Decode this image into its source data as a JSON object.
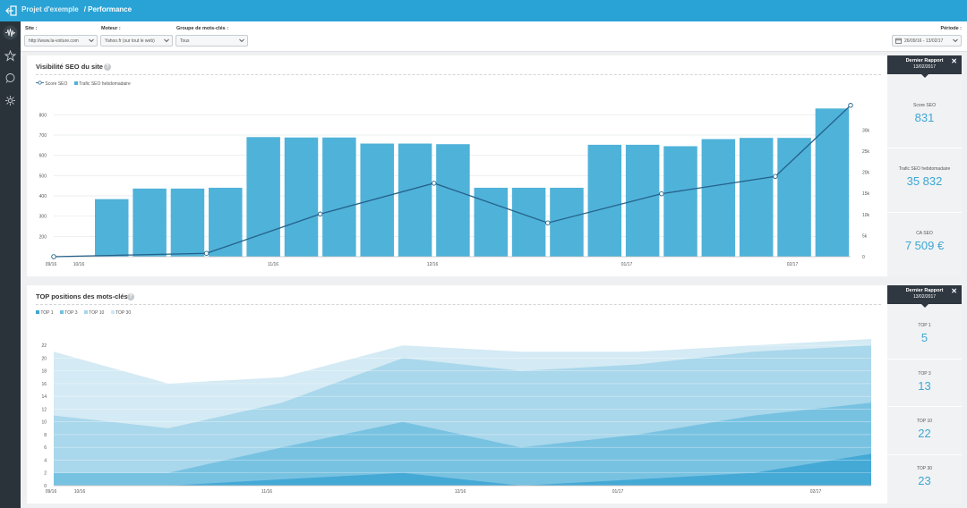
{
  "topbar": {
    "project": "Projet d'exemple",
    "page": "/ Performance"
  },
  "filters": {
    "site_label": "Site :",
    "site_value": "http://www.la-voiture.com",
    "engine_label": "Moteur :",
    "engine_value": "Yahoo.fr (sur tout le web)",
    "group_label": "Groupe de mots-clés :",
    "group_value": "Tous",
    "period_label": "Période :",
    "period_value": "26/09/16 - 13/02/17"
  },
  "seo_panel": {
    "title": "Visibilité SEO du site",
    "title_arrow": "›",
    "legend": [
      "Score SEO",
      "Trafic SEO hebdomadaire"
    ],
    "report_title": "Dernier Rapport",
    "report_date": "13/02/2017",
    "kpis": [
      {
        "label": "Score SEO",
        "value": "831"
      },
      {
        "label": "Trafic SEO hebdomadaire",
        "value": "35 832"
      },
      {
        "label": "CA SEO",
        "value": "7 509 €"
      }
    ]
  },
  "top_panel": {
    "title": "TOP positions des mots-clés",
    "title_arrow": "›",
    "legend": [
      "TOP 1",
      "TOP 3",
      "TOP 10",
      "TOP 30"
    ],
    "report_title": "Dernier Rapport",
    "report_date": "13/02/2017",
    "kpis": [
      {
        "label": "TOP 1",
        "value": "5"
      },
      {
        "label": "TOP 3",
        "value": "13"
      },
      {
        "label": "TOP 10",
        "value": "22"
      },
      {
        "label": "TOP 30",
        "value": "23"
      }
    ]
  },
  "colors": {
    "accent": "#29a3d6",
    "bar": "#4fb2d9",
    "line": "#24618a",
    "sidebar": "#2b333a",
    "kpi": "#3fa6d2"
  },
  "chart_data": [
    {
      "type": "bar",
      "title": "Visibilité SEO du site",
      "x_tick_labels": [
        "09/16",
        "10/16",
        "11/16",
        "12/16",
        "01/17",
        "02/17"
      ],
      "ylim_left": [
        100,
        850
      ],
      "yticks_left": [
        200,
        300,
        400,
        500,
        600,
        700,
        800
      ],
      "ylim_right": [
        0,
        36000
      ],
      "yticks_right": [
        "0",
        "5k",
        "10k",
        "15k",
        "20k",
        "25k",
        "30k"
      ],
      "yticks_right_values": [
        0,
        5000,
        10000,
        15000,
        20000,
        25000,
        30000
      ],
      "bar_axis": "left",
      "bars_name": "Trafic SEO hebdomadaire",
      "bar_values": [
        384,
        436,
        436,
        440,
        690,
        688,
        688,
        658,
        658,
        655,
        440,
        440,
        440,
        652,
        652,
        645,
        680,
        686,
        686,
        831
      ],
      "line_name": "Score SEO",
      "line_axis": "right",
      "line_points": [
        {
          "x": 0,
          "y": 0
        },
        {
          "x": 3,
          "y": 800
        },
        {
          "x": 6,
          "y": 10100
        },
        {
          "x": 9,
          "y": 17400
        },
        {
          "x": 12,
          "y": 8000
        },
        {
          "x": 15,
          "y": 14900
        },
        {
          "x": 18,
          "y": 19000
        },
        {
          "x": 21.5,
          "y": 35832
        }
      ],
      "grid": true,
      "legend_position": "top-left"
    },
    {
      "type": "area",
      "title": "TOP positions des mots-clés",
      "x_tick_labels": [
        "09/16",
        "10/16",
        "11/16",
        "12/16",
        "01/17",
        "02/17"
      ],
      "ylim": [
        0,
        23
      ],
      "yticks": [
        0,
        2,
        4,
        6,
        8,
        10,
        12,
        14,
        16,
        18,
        20,
        22
      ],
      "grid": true,
      "legend_position": "top-left",
      "series": [
        {
          "name": "TOP 30",
          "values": [
            21,
            16,
            17,
            22,
            21,
            21,
            22,
            23
          ]
        },
        {
          "name": "TOP 10",
          "values": [
            11,
            9,
            13,
            20,
            18,
            19,
            21,
            22
          ]
        },
        {
          "name": "TOP 3",
          "values": [
            2,
            2,
            6,
            10,
            6,
            8,
            11,
            13
          ]
        },
        {
          "name": "TOP 1",
          "values": [
            0,
            0,
            1,
            2,
            0,
            1,
            2,
            5
          ]
        }
      ]
    }
  ]
}
